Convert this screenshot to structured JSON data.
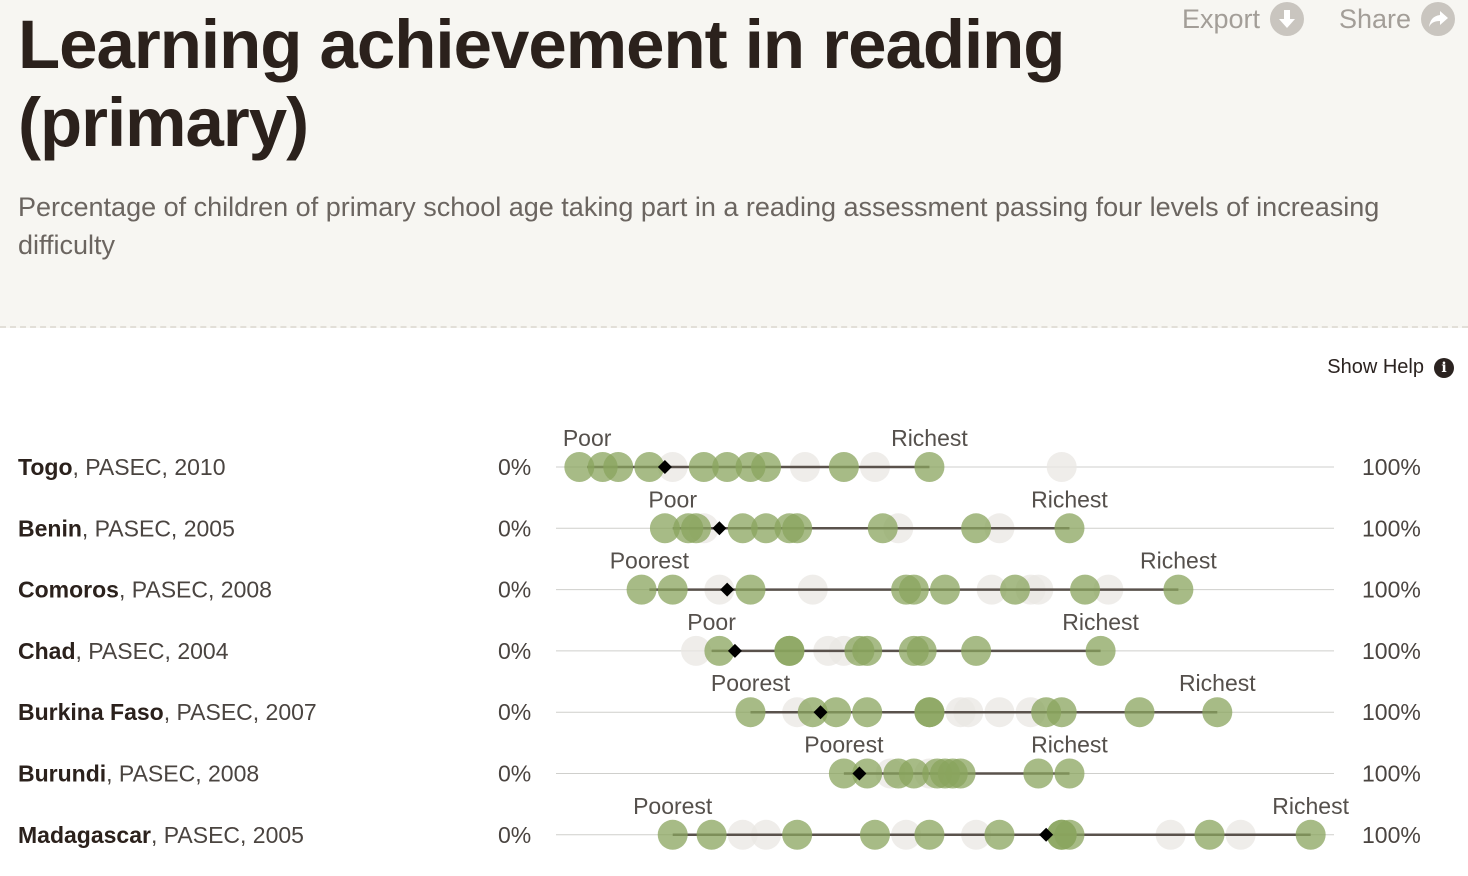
{
  "header": {
    "title": "Learning achievement in reading (primary)",
    "subtitle": "Percentage of children of primary school age taking part in a reading assessment passing four levels of increasing difficulty",
    "export_label": "Export",
    "share_label": "Share",
    "help_label": "Show Help"
  },
  "colors": {
    "dot_active": "#8aa45e",
    "dot_faded": "#e9e7e3",
    "marker": "#000000",
    "header_bg": "#f7f6f2"
  },
  "chart_data": {
    "type": "scatter",
    "xlim": [
      0,
      100
    ],
    "axis_min_label": "0%",
    "axis_max_label": "100%",
    "rows": [
      {
        "country": "Togo",
        "source": ", PASEC, 2010",
        "low_label": "Poor",
        "high_label": "Richest",
        "range": [
          4,
          48
        ],
        "average": 14,
        "active": [
          3,
          6,
          8,
          12,
          19,
          22,
          25,
          27,
          37,
          48
        ],
        "faded": [
          15,
          32,
          41,
          65
        ]
      },
      {
        "country": "Benin",
        "source": ", PASEC, 2005",
        "low_label": "Poor",
        "high_label": "Richest",
        "range": [
          15,
          66
        ],
        "average": 21,
        "active": [
          14,
          17,
          18,
          24,
          27,
          30,
          31,
          42,
          54,
          66
        ],
        "faded": [
          19,
          44,
          57
        ]
      },
      {
        "country": "Comoros",
        "source": ", PASEC, 2008",
        "low_label": "Poorest",
        "high_label": "Richest",
        "range": [
          12,
          80
        ],
        "average": 22,
        "active": [
          11,
          15,
          25,
          45,
          46,
          50,
          59,
          68,
          80
        ],
        "faded": [
          21,
          33,
          56,
          61,
          62,
          71
        ]
      },
      {
        "country": "Chad",
        "source": ", PASEC, 2004",
        "low_label": "Poor",
        "high_label": "Richest",
        "range": [
          20,
          70
        ],
        "average": 23,
        "active": [
          21,
          30,
          30,
          39,
          40,
          46,
          47,
          54,
          70
        ],
        "faded": [
          18,
          35,
          37
        ]
      },
      {
        "country": "Burkina Faso",
        "source": ", PASEC, 2007",
        "low_label": "Poorest",
        "high_label": "Richest",
        "range": [
          25,
          85
        ],
        "average": 34,
        "active": [
          25,
          33,
          36,
          40,
          48,
          48,
          63,
          65,
          75,
          85
        ],
        "faded": [
          31,
          52,
          53,
          57,
          61
        ]
      },
      {
        "country": "Burundi",
        "source": ", PASEC, 2008",
        "low_label": "Poorest",
        "high_label": "Richest",
        "range": [
          37,
          66
        ],
        "average": 39,
        "active": [
          37,
          40,
          44,
          46,
          49,
          50,
          51,
          52,
          62,
          66
        ],
        "faded": [
          43,
          48
        ]
      },
      {
        "country": "Madagascar",
        "source": ", PASEC, 2005",
        "low_label": "Poorest",
        "high_label": "Richest",
        "range": [
          15,
          97
        ],
        "average": 63,
        "active": [
          15,
          20,
          31,
          41,
          48,
          57,
          65,
          65,
          66,
          84,
          97
        ],
        "faded": [
          24,
          27,
          45,
          54,
          79,
          88
        ]
      }
    ]
  }
}
